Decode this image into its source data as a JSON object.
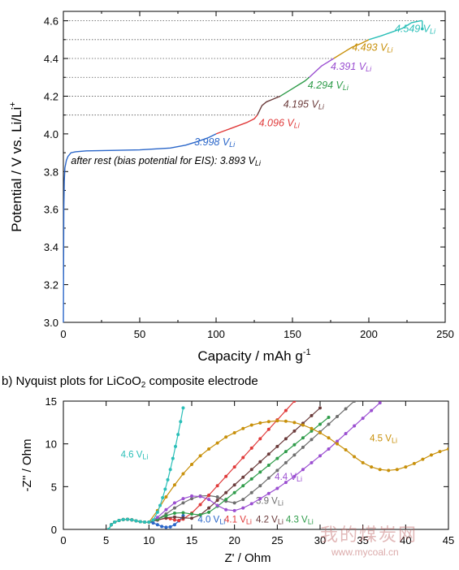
{
  "chart_data": [
    {
      "type": "line",
      "title": "",
      "xlabel": "Capacity / mAh g",
      "xlabel_sup": "-1",
      "ylabel": "Potential / V vs. Li/Li",
      "ylabel_sup": "+",
      "xlim": [
        0,
        250
      ],
      "ylim": [
        3.0,
        4.65
      ],
      "xticks": [
        "0",
        "50",
        "100",
        "150",
        "200",
        "250"
      ],
      "yticks": [
        "3.0",
        "3.2",
        "3.4",
        "3.6",
        "3.8",
        "4.0",
        "4.2",
        "4.4",
        "4.6"
      ],
      "grid": false,
      "reference_lines_y": [
        4.1,
        4.2,
        4.3,
        4.4,
        4.5,
        4.6
      ],
      "series": [
        {
          "color": "#2a66c9",
          "x": [
            0,
            0.3,
            0.6,
            1,
            2,
            3,
            5,
            8,
            15,
            30,
            50,
            70,
            80,
            88,
            95,
            100
          ],
          "y": [
            3.0,
            3.6,
            3.75,
            3.82,
            3.86,
            3.88,
            3.9,
            3.905,
            3.91,
            3.912,
            3.915,
            3.925,
            3.94,
            3.96,
            3.98,
            4.0
          ]
        },
        {
          "color": "#e03a3a",
          "x": [
            100,
            105,
            110,
            115,
            120,
            125,
            127
          ],
          "y": [
            4.0,
            4.015,
            4.03,
            4.045,
            4.06,
            4.08,
            4.1
          ]
        },
        {
          "color": "#6b3b3b",
          "x": [
            127,
            130,
            133,
            136,
            139,
            142
          ],
          "y": [
            4.1,
            4.15,
            4.17,
            4.18,
            4.19,
            4.2
          ]
        },
        {
          "color": "#2f9c4a",
          "x": [
            142,
            146,
            150,
            154,
            158,
            161
          ],
          "y": [
            4.2,
            4.22,
            4.24,
            4.26,
            4.28,
            4.3
          ]
        },
        {
          "color": "#9b4fd1",
          "x": [
            161,
            165,
            169,
            173,
            177
          ],
          "y": [
            4.3,
            4.33,
            4.36,
            4.38,
            4.4
          ]
        },
        {
          "color": "#c8900a",
          "x": [
            177,
            183,
            189,
            195,
            200
          ],
          "y": [
            4.4,
            4.43,
            4.46,
            4.48,
            4.5
          ]
        },
        {
          "color": "#2bbfb8",
          "x": [
            200,
            208,
            215,
            222,
            228,
            234,
            235
          ],
          "y": [
            4.5,
            4.52,
            4.54,
            4.56,
            4.59,
            4.6,
            4.6
          ]
        }
      ],
      "annotations": [
        {
          "text": "3.998 V",
          "sub": "Li",
          "color": "#2a66c9",
          "x": 99,
          "y": 3.94,
          "anchor": "middle"
        },
        {
          "text": "4.096 V",
          "sub": "Li",
          "color": "#e03a3a",
          "x": 128,
          "y": 4.04,
          "anchor": "start"
        },
        {
          "text": "4.195 V",
          "sub": "Li",
          "color": "#6b3b3b",
          "x": 144,
          "y": 4.14,
          "anchor": "start"
        },
        {
          "text": "4.294 V",
          "sub": "Li",
          "color": "#2f9c4a",
          "x": 160,
          "y": 4.24,
          "anchor": "start"
        },
        {
          "text": "4.391 V",
          "sub": "Li",
          "color": "#9b4fd1",
          "x": 175,
          "y": 4.34,
          "anchor": "start"
        },
        {
          "text": "4.493 V",
          "sub": "Li",
          "color": "#c8900a",
          "x": 189,
          "y": 4.44,
          "anchor": "start"
        },
        {
          "text": "4.549 V",
          "sub": "Li",
          "color": "#2bbfb8",
          "x": 217,
          "y": 4.54,
          "anchor": "start"
        },
        {
          "text": "after rest (bias potential for EIS): 3.893 V",
          "sub": "Li",
          "color": "#000000",
          "x": 5,
          "y": 3.84,
          "anchor": "start"
        }
      ]
    },
    {
      "type": "scatter",
      "title": "b) Nyquist plots for LiCoO",
      "title_sub": "2",
      "title_end": " composite electrode",
      "xlabel": "Z' / Ohm",
      "ylabel": "-Z'' / Ohm",
      "xlim": [
        0,
        45
      ],
      "ylim": [
        0,
        15
      ],
      "xticks": [
        "0",
        "5",
        "10",
        "15",
        "20",
        "25",
        "30",
        "35",
        "40",
        "45"
      ],
      "yticks": [
        "0",
        "5",
        "10",
        "15"
      ],
      "grid": false,
      "series": [
        {
          "label": "3.9 V",
          "sub": "Li",
          "color": "#6e6e6e",
          "x": [
            5.3,
            5.6,
            6,
            6.5,
            7,
            7.5,
            8,
            8.5,
            9,
            9.5,
            10,
            11,
            12,
            13,
            14,
            15,
            16,
            17,
            18,
            19,
            20,
            21,
            22,
            23,
            24,
            25,
            26,
            27,
            28,
            29,
            30,
            31,
            32,
            33,
            34
          ],
          "y": [
            0,
            0.55,
            0.85,
            1.05,
            1.15,
            1.18,
            1.12,
            1.0,
            0.9,
            0.85,
            0.85,
            1.2,
            1.8,
            2.5,
            3.1,
            3.6,
            3.9,
            3.95,
            3.8,
            3.3,
            3.1,
            3.5,
            4.3,
            5.1,
            6.0,
            6.9,
            7.8,
            8.7,
            9.6,
            10.5,
            11.4,
            12.3,
            13.2,
            14.1,
            15.0
          ],
          "label_pos": [
            22.5,
            3.0
          ]
        },
        {
          "label": "4.0 V",
          "sub": "Li",
          "color": "#2a66c9",
          "x": [
            5.3,
            5.6,
            6,
            6.5,
            7,
            7.5,
            8,
            8.5,
            9,
            9.5,
            10,
            10.5,
            11,
            11.5,
            12,
            12.5,
            13,
            13.5,
            14
          ],
          "y": [
            0,
            0.55,
            0.85,
            1.05,
            1.15,
            1.18,
            1.12,
            1.0,
            0.9,
            0.85,
            0.85,
            0.75,
            0.55,
            0.35,
            0.25,
            0.3,
            0.55,
            1.0,
            1.6
          ],
          "label_pos": [
            15.7,
            0.8
          ]
        },
        {
          "label": "4.1 V",
          "sub": "Li",
          "color": "#e03a3a",
          "x": [
            5.3,
            5.6,
            6,
            6.5,
            7,
            7.5,
            8,
            8.5,
            9,
            9.5,
            10,
            11,
            12,
            12.5,
            13,
            13.5,
            14,
            15,
            16,
            17,
            18,
            19,
            20,
            21,
            22,
            23,
            24,
            25,
            26,
            27,
            28
          ],
          "y": [
            0,
            0.55,
            0.85,
            1.05,
            1.15,
            1.18,
            1.12,
            1.0,
            0.9,
            0.85,
            0.85,
            1.1,
            1.3,
            1.25,
            1.1,
            1.05,
            1.2,
            1.9,
            2.9,
            4.0,
            5.1,
            6.2,
            7.3,
            8.4,
            9.5,
            10.6,
            11.7,
            12.8,
            13.9,
            15.0,
            16.0
          ],
          "label_pos": [
            18.8,
            0.8
          ]
        },
        {
          "label": "4.2 V",
          "sub": "Li",
          "color": "#6b3b3b",
          "x": [
            5.3,
            5.6,
            6,
            6.5,
            7,
            7.5,
            8,
            8.5,
            9,
            9.5,
            10,
            11,
            12,
            13,
            14,
            15,
            16,
            17,
            18,
            19,
            20,
            21,
            22,
            23,
            24,
            25,
            26,
            27,
            28,
            29,
            30
          ],
          "y": [
            0,
            0.55,
            0.85,
            1.05,
            1.15,
            1.18,
            1.12,
            1.0,
            0.9,
            0.85,
            0.85,
            1.1,
            1.35,
            1.45,
            1.35,
            1.3,
            1.7,
            2.5,
            3.4,
            4.3,
            5.2,
            6.1,
            7.0,
            7.9,
            8.8,
            9.7,
            10.6,
            11.5,
            12.4,
            13.3,
            14.2
          ],
          "label_pos": [
            22.5,
            0.8
          ]
        },
        {
          "label": "4.3 V",
          "sub": "Li",
          "color": "#2f9c4a",
          "x": [
            5.3,
            5.6,
            6,
            6.5,
            7,
            7.5,
            8,
            8.5,
            9,
            9.5,
            10,
            11,
            12,
            13,
            14,
            15,
            16,
            17,
            18,
            19,
            20,
            21,
            22,
            23,
            24,
            25,
            26,
            27,
            28,
            29,
            30,
            31
          ],
          "y": [
            0,
            0.55,
            0.85,
            1.05,
            1.15,
            1.18,
            1.12,
            1.0,
            0.9,
            0.85,
            0.85,
            1.2,
            1.6,
            1.9,
            1.95,
            1.8,
            1.7,
            2.0,
            2.7,
            3.5,
            4.3,
            5.1,
            5.9,
            6.7,
            7.5,
            8.3,
            9.1,
            9.9,
            10.7,
            11.5,
            12.3,
            13.1
          ],
          "label_pos": [
            26.0,
            0.8
          ]
        },
        {
          "label": "4.4 V",
          "sub": "Li",
          "color": "#9b4fd1",
          "x": [
            5.3,
            5.6,
            6,
            6.5,
            7,
            7.5,
            8,
            8.5,
            9,
            9.5,
            10,
            11,
            12,
            13,
            14,
            15,
            16,
            17,
            18,
            19,
            20,
            21,
            22,
            23,
            24,
            25,
            26,
            27,
            28,
            29,
            30,
            31,
            32,
            33,
            34,
            35,
            36,
            37
          ],
          "y": [
            0,
            0.55,
            0.85,
            1.05,
            1.15,
            1.18,
            1.12,
            1.0,
            0.9,
            0.85,
            0.85,
            1.4,
            2.3,
            3.1,
            3.6,
            3.9,
            3.85,
            3.5,
            2.8,
            2.3,
            2.2,
            2.5,
            3.0,
            3.6,
            4.2,
            4.8,
            5.5,
            6.2,
            7.0,
            7.8,
            8.6,
            9.4,
            10.3,
            11.2,
            12.1,
            13.0,
            13.9,
            14.8
          ],
          "label_pos": [
            24.7,
            5.8
          ]
        },
        {
          "label": "4.5 V",
          "sub": "Li",
          "color": "#c8900a",
          "x": [
            5.3,
            5.6,
            6,
            6.5,
            7,
            7.5,
            8,
            8.5,
            9,
            9.5,
            10,
            11,
            12,
            13,
            14,
            15,
            16,
            17,
            18,
            19,
            20,
            21,
            22,
            23,
            24,
            25,
            26,
            27,
            28,
            29,
            30,
            31,
            32,
            33,
            34,
            35,
            36,
            37,
            38,
            39,
            40,
            41,
            42,
            43,
            44,
            45
          ],
          "y": [
            0,
            0.55,
            0.85,
            1.05,
            1.15,
            1.18,
            1.12,
            1.0,
            0.9,
            0.85,
            0.85,
            2.2,
            3.8,
            5.2,
            6.5,
            7.6,
            8.6,
            9.4,
            10.1,
            10.8,
            11.3,
            11.8,
            12.2,
            12.45,
            12.6,
            12.7,
            12.65,
            12.5,
            12.2,
            11.8,
            11.3,
            10.7,
            10.0,
            9.3,
            8.5,
            7.8,
            7.3,
            7.0,
            6.9,
            7.0,
            7.3,
            7.7,
            8.2,
            8.7,
            9.1,
            9.4
          ],
          "label_pos": [
            35.8,
            10.3
          ]
        },
        {
          "label": "4.6 V",
          "sub": "Li",
          "color": "#2bbfb8",
          "x": [
            5.3,
            5.6,
            6,
            6.5,
            7,
            7.5,
            8,
            8.5,
            9,
            9.5,
            10,
            10.5,
            11,
            11.3,
            11.6,
            11.9,
            12.2,
            12.5,
            12.8,
            13.1,
            13.4,
            13.7,
            14.0
          ],
          "y": [
            0,
            0.55,
            0.85,
            1.05,
            1.15,
            1.18,
            1.12,
            1.0,
            0.9,
            0.85,
            0.85,
            1.1,
            2.0,
            2.8,
            3.7,
            4.7,
            5.8,
            7.0,
            8.3,
            9.7,
            11.1,
            12.6,
            14.2
          ],
          "label_pos": [
            6.7,
            8.4
          ]
        }
      ]
    }
  ],
  "watermark": {
    "line1": "我的煤炭网",
    "line2": "www.mycoal.cn"
  }
}
